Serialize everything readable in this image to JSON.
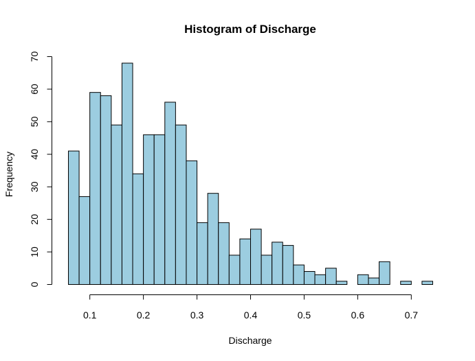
{
  "chart_data": {
    "type": "bar",
    "title": "Histogram of Discharge",
    "xlabel": "Discharge",
    "ylabel": "Frequency",
    "bar_color": "#9ccde0",
    "bin_width": 0.02,
    "bins_start": [
      0.06,
      0.08,
      0.1,
      0.12,
      0.14,
      0.16,
      0.18,
      0.2,
      0.22,
      0.24,
      0.26,
      0.28,
      0.3,
      0.32,
      0.34,
      0.36,
      0.38,
      0.4,
      0.42,
      0.44,
      0.46,
      0.48,
      0.5,
      0.52,
      0.54,
      0.56,
      0.58,
      0.6,
      0.62,
      0.64,
      0.66,
      0.68,
      0.7,
      0.72
    ],
    "values": [
      41,
      27,
      59,
      58,
      49,
      68,
      34,
      46,
      46,
      56,
      49,
      38,
      19,
      28,
      19,
      9,
      14,
      17,
      9,
      13,
      12,
      6,
      4,
      3,
      5,
      1,
      0,
      3,
      2,
      7,
      0,
      1,
      0,
      1
    ],
    "xlim": [
      0.06,
      0.74
    ],
    "ylim": [
      0,
      70
    ],
    "xticks": [
      "0.1",
      "0.2",
      "0.3",
      "0.4",
      "0.5",
      "0.6",
      "0.7"
    ],
    "xtick_values": [
      0.1,
      0.2,
      0.3,
      0.4,
      0.5,
      0.6,
      0.7
    ],
    "yticks": [
      "0",
      "10",
      "20",
      "30",
      "40",
      "50",
      "60",
      "70"
    ],
    "ytick_values": [
      0,
      10,
      20,
      30,
      40,
      50,
      60,
      70
    ],
    "grid": false,
    "legend": "none"
  }
}
